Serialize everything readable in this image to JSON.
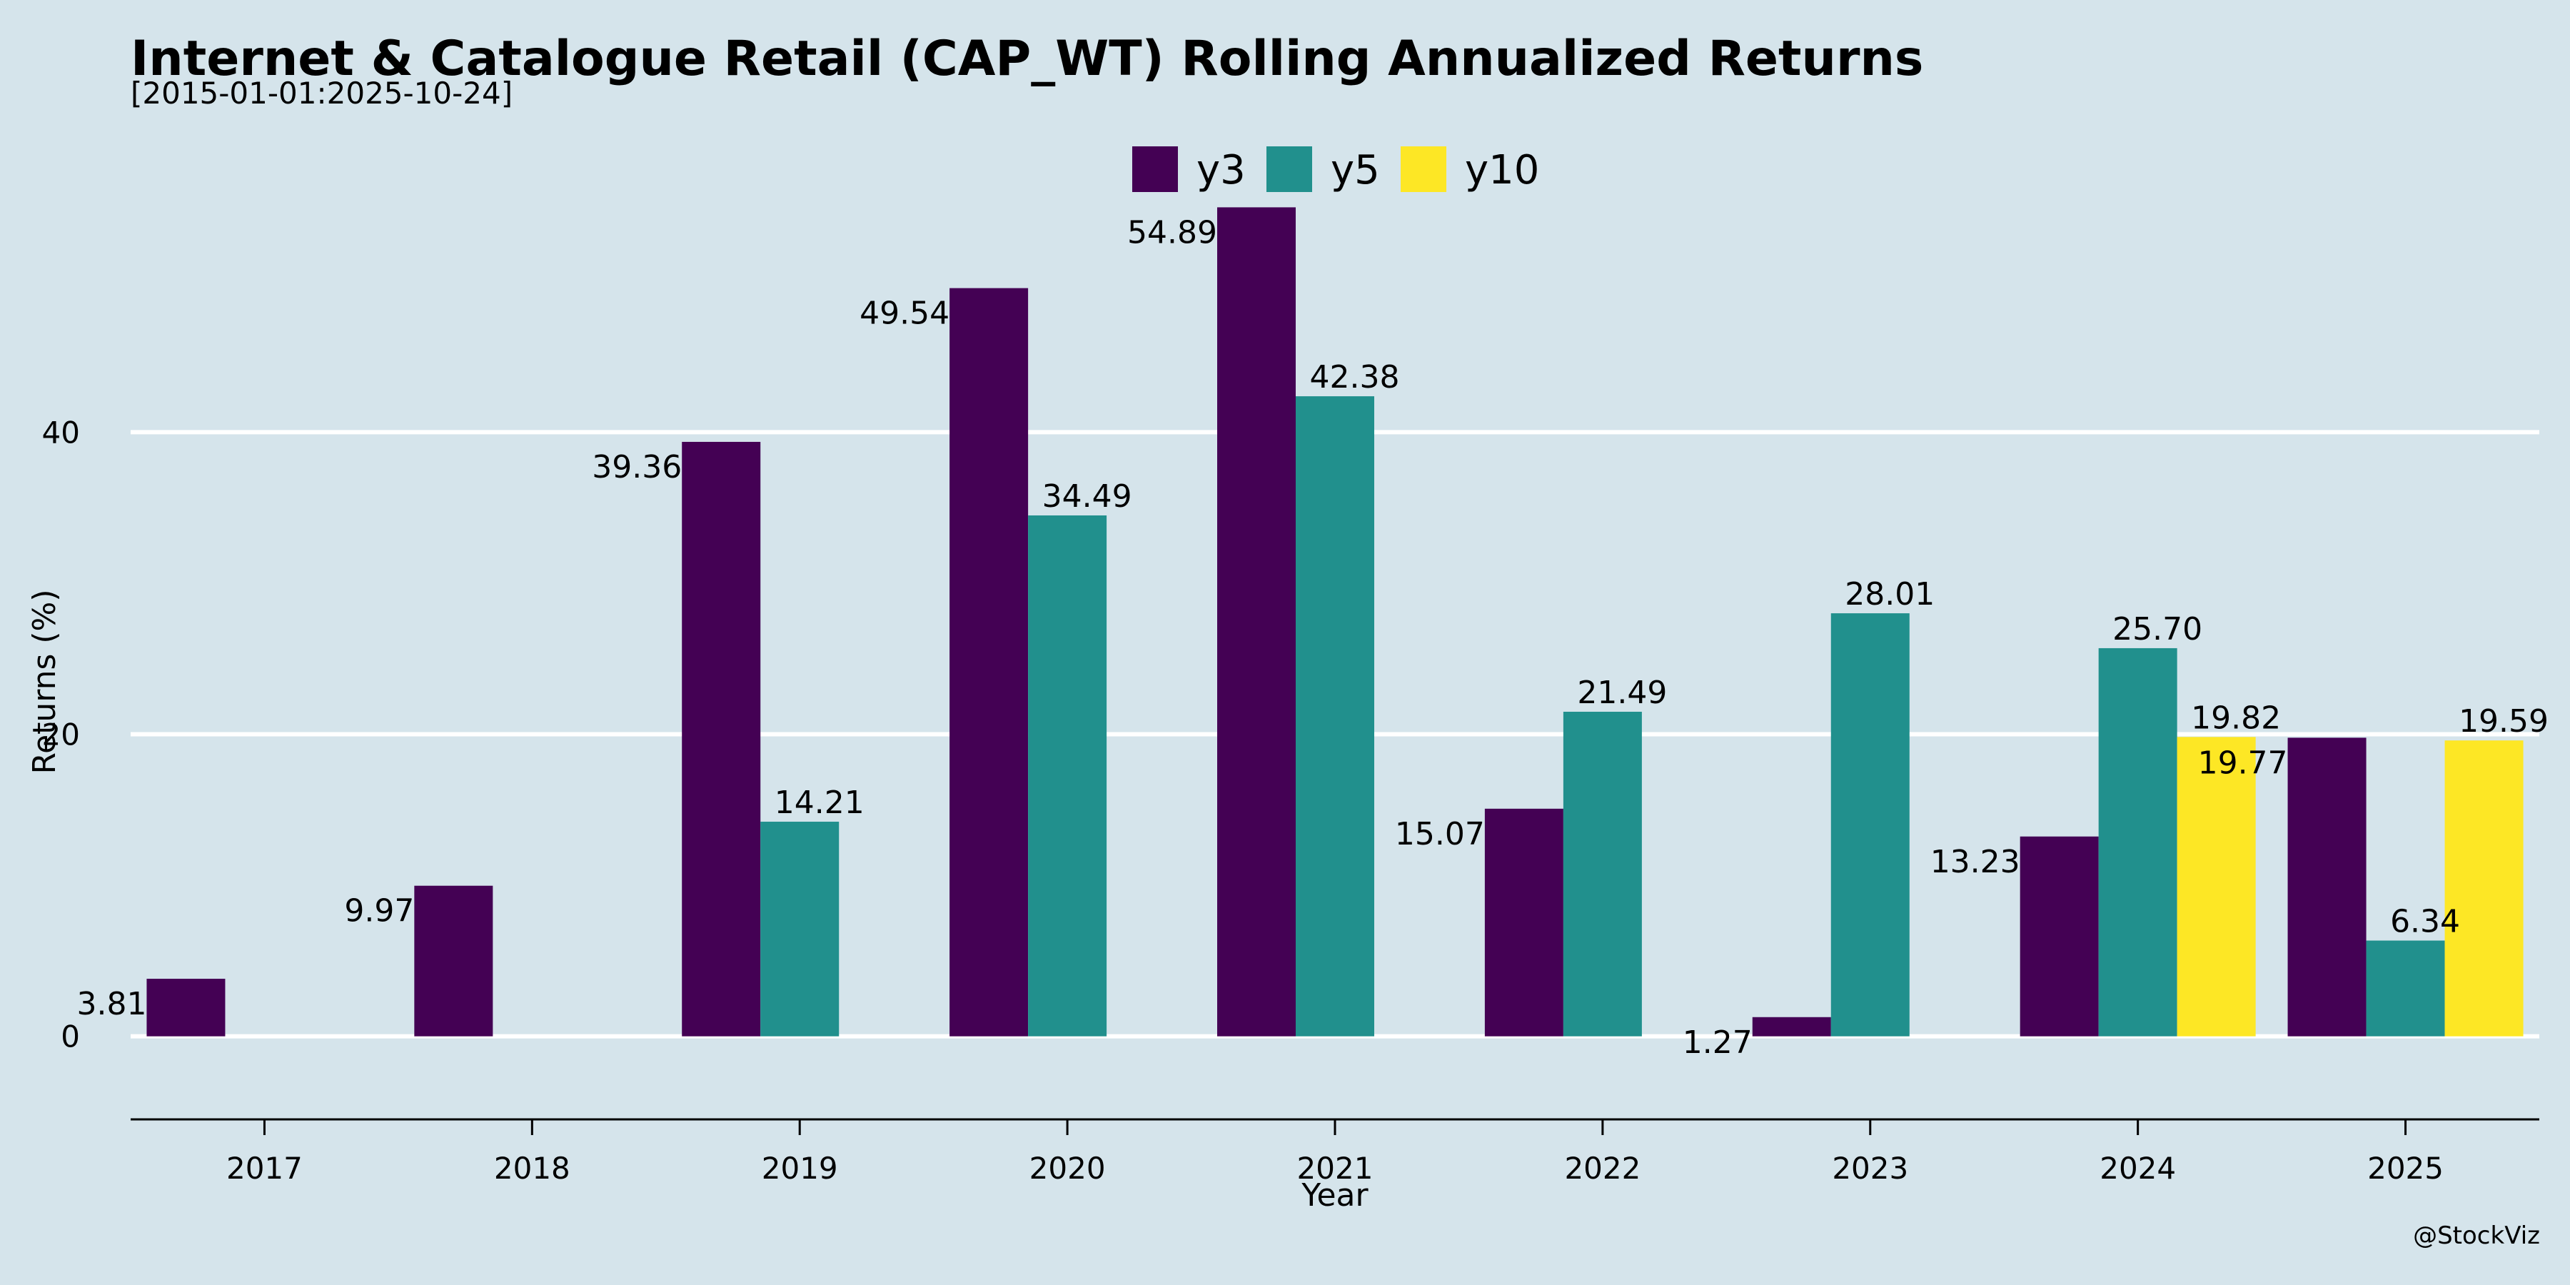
{
  "chart_data": {
    "type": "bar",
    "title": "Internet & Catalogue Retail (CAP_WT) Rolling Annualized Returns",
    "subtitle": "[2015-01-01:2025-10-24]",
    "xlabel": "Year",
    "ylabel": "Returns (%)",
    "categories": [
      "2017",
      "2018",
      "2019",
      "2020",
      "2021",
      "2022",
      "2023",
      "2024",
      "2025"
    ],
    "ylim": [
      -5.5,
      62
    ],
    "yticks": [
      0,
      20,
      40
    ],
    "grid": true,
    "legend_position": "top-center",
    "series": [
      {
        "name": "y3",
        "color": "#440154",
        "values": [
          3.81,
          9.97,
          39.36,
          49.54,
          54.89,
          15.07,
          1.27,
          13.23,
          19.77
        ],
        "labels": [
          "3.81",
          "9.97",
          "39.36",
          "49.54",
          "54.89",
          "15.07",
          "1.27",
          "13.23",
          "19.77"
        ]
      },
      {
        "name": "y5",
        "color": "#21908d",
        "values": [
          null,
          null,
          14.21,
          34.49,
          42.38,
          21.49,
          28.01,
          25.7,
          6.34
        ],
        "labels": [
          "",
          "",
          "14.21",
          "34.49",
          "42.38",
          "21.49",
          "28.01",
          "25.70",
          "6.34"
        ]
      },
      {
        "name": "y10",
        "color": "#fde725",
        "values": [
          null,
          null,
          null,
          null,
          null,
          null,
          null,
          19.82,
          19.59
        ],
        "labels": [
          "",
          "",
          "",
          "",
          "",
          "",
          "",
          "19.82",
          "19.59"
        ]
      }
    ]
  },
  "credit": "@StockViz"
}
